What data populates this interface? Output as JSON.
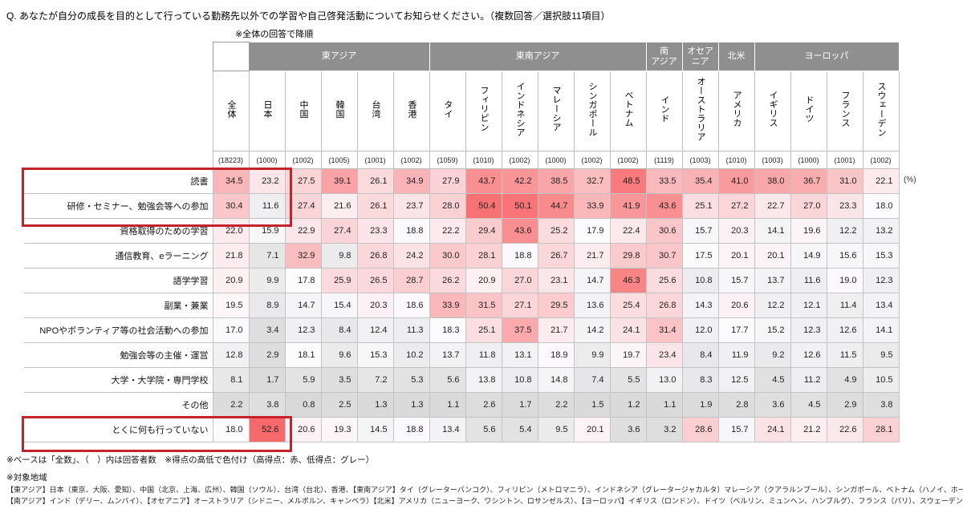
{
  "title": "Q. あなたが自分の成長を目的として行っている勤務先以外での学習や自己啓発活動についてお知らせください。（複数回答／選択肢11項目）",
  "sort_note": "※全体の回答で降順",
  "unit_label": "(%)",
  "footnotes": {
    "base_note": "※ベースは「全数」、（　）内は回答者数　※得点の高低で色付け（高得点：赤、低得点：グレー）",
    "region_title": "※対象地域",
    "region_line1": "【東アジア】日本（東京、大阪、愛知）、中国（北京、上海、広州）、韓国（ソウル）、台湾（台北）、香港、【東南アジア】タイ（グレーターバンコク）、フィリピン（メトロマニラ）、インドネシア（グレータージャカルタ）マレーシア（クアラルンプール）、シンガポール、ベトナム（ハノイ、ホーチミンシティ）",
    "region_line2": "【南アジア】インド（デリー、ムンバイ）、【オセアニア】オーストラリア（シドニー、メルボルン、キャンベラ）【北米】アメリカ（ニューヨーク、ワシントン、ロサンゼルス）、【ヨーロッパ】イギリス（ロンドン）、ドイツ（ベルリン、ミュンヘン、ハンブルグ）、フランス（パリ）、スウェーデン（ストックホルム）"
  },
  "colors": {
    "region_header_bg": "#8f8f8f",
    "region_header_text": "#ffffff",
    "highlight_box": "#c5232b",
    "scale_low": "#d9d9d9",
    "scale_mid": "#fcfcff",
    "scale_high": "#f8696b"
  },
  "chart_data": {
    "type": "heatmap",
    "unit": "%",
    "color_rule": "高得点：赤、低得点：グレー",
    "regions": [
      {
        "label": "東アジア",
        "span": 5
      },
      {
        "label": "東南アジア",
        "span": 6
      },
      {
        "label": "南\nアジア",
        "span": 1
      },
      {
        "label": "オセア\nニア",
        "span": 1
      },
      {
        "label": "北米",
        "span": 1
      },
      {
        "label": "ヨーロッパ",
        "span": 4
      }
    ],
    "columns": [
      {
        "name": "全体",
        "n": "(18223)"
      },
      {
        "name": "日本",
        "n": "(1000)"
      },
      {
        "name": "中国",
        "n": "(1002)"
      },
      {
        "name": "韓国",
        "n": "(1005)"
      },
      {
        "name": "台湾",
        "n": "(1001)"
      },
      {
        "name": "香港",
        "n": "(1002)"
      },
      {
        "name": "タイ",
        "n": "(1059)"
      },
      {
        "name": "フィリピン",
        "n": "(1010)"
      },
      {
        "name": "インドネシア",
        "n": "(1002)"
      },
      {
        "name": "マレーシア",
        "n": "(1000)"
      },
      {
        "name": "シンガポール",
        "n": "(1002)"
      },
      {
        "name": "ベトナム",
        "n": "(1002)"
      },
      {
        "name": "インド",
        "n": "(1119)"
      },
      {
        "name": "オーストラリア",
        "n": "(1003)"
      },
      {
        "name": "アメリカ",
        "n": "(1010)"
      },
      {
        "name": "イギリス",
        "n": "(1003)"
      },
      {
        "name": "ドイツ",
        "n": "(1000)"
      },
      {
        "name": "フランス",
        "n": "(1001)"
      },
      {
        "name": "スウェーデン",
        "n": "(1002)"
      }
    ],
    "rows": [
      {
        "label": "読書",
        "values": [
          34.5,
          23.2,
          27.5,
          39.1,
          26.1,
          34.9,
          27.9,
          43.7,
          42.2,
          38.5,
          32.7,
          48.5,
          33.5,
          35.4,
          41.0,
          38.0,
          36.7,
          31.0,
          22.1
        ]
      },
      {
        "label": "研修・セミナー、勉強会等への参加",
        "values": [
          30.4,
          11.6,
          27.4,
          21.6,
          26.1,
          23.7,
          28.0,
          50.4,
          50.1,
          44.7,
          33.9,
          41.9,
          43.6,
          25.1,
          27.2,
          22.7,
          27.0,
          23.3,
          18.0
        ]
      },
      {
        "label": "資格取得のための学習",
        "values": [
          22.0,
          15.9,
          22.9,
          27.4,
          23.3,
          18.8,
          22.2,
          29.4,
          43.6,
          25.2,
          17.9,
          22.4,
          30.6,
          15.7,
          20.3,
          14.1,
          19.6,
          12.2,
          13.2
        ]
      },
      {
        "label": "通信教育、eラーニング",
        "values": [
          21.8,
          7.1,
          32.9,
          9.8,
          26.8,
          24.2,
          30.0,
          28.1,
          18.8,
          26.7,
          21.7,
          29.8,
          30.7,
          17.5,
          20.1,
          20.1,
          14.9,
          15.6,
          15.3
        ]
      },
      {
        "label": "語学学習",
        "values": [
          20.9,
          9.9,
          17.8,
          25.9,
          26.5,
          28.7,
          26.2,
          20.9,
          27.0,
          23.1,
          14.7,
          46.3,
          25.6,
          10.8,
          15.7,
          13.7,
          11.6,
          19.0,
          12.3
        ]
      },
      {
        "label": "副業・兼業",
        "values": [
          19.5,
          8.9,
          14.7,
          15.4,
          20.3,
          18.6,
          33.9,
          31.5,
          27.1,
          29.5,
          13.6,
          25.4,
          26.8,
          14.3,
          20.6,
          12.2,
          12.1,
          11.4,
          13.4
        ]
      },
      {
        "label": "NPOやボランティア等の社会活動への参加",
        "values": [
          17.0,
          3.4,
          12.3,
          8.4,
          12.4,
          11.3,
          18.3,
          25.1,
          37.5,
          21.7,
          14.2,
          24.1,
          31.4,
          12.0,
          17.7,
          15.2,
          12.3,
          12.6,
          14.1
        ]
      },
      {
        "label": "勉強会等の主催・運営",
        "values": [
          12.8,
          2.9,
          18.1,
          9.6,
          15.3,
          10.2,
          13.7,
          11.8,
          13.1,
          18.9,
          9.9,
          19.7,
          23.4,
          8.4,
          11.9,
          9.2,
          12.6,
          11.5,
          9.5
        ]
      },
      {
        "label": "大学・大学院・専門学校",
        "values": [
          8.1,
          1.7,
          5.9,
          3.5,
          7.2,
          5.3,
          5.6,
          13.8,
          10.8,
          14.8,
          7.4,
          5.5,
          13.0,
          8.3,
          12.5,
          4.5,
          11.2,
          4.9,
          10.5
        ]
      },
      {
        "label": "その他",
        "values": [
          2.2,
          3.8,
          0.8,
          2.5,
          1.3,
          1.3,
          1.1,
          2.6,
          1.7,
          2.2,
          1.5,
          1.2,
          1.1,
          1.9,
          2.8,
          3.6,
          4.5,
          2.9,
          3.8
        ]
      },
      {
        "label": "とくに何も行っていない",
        "values": [
          18.0,
          52.6,
          20.6,
          19.3,
          14.5,
          18.8,
          13.4,
          5.6,
          5.4,
          9.5,
          20.1,
          3.6,
          3.2,
          28.6,
          15.7,
          24.1,
          21.2,
          22.6,
          28.1
        ]
      }
    ]
  }
}
